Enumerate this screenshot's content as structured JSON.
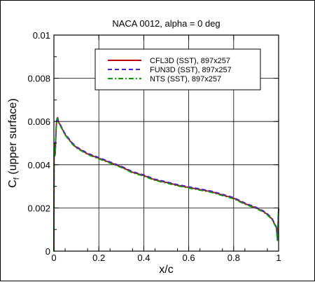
{
  "chart_data": {
    "type": "line",
    "title": "NACA 0012, alpha = 0 deg",
    "xlabel": "x/c",
    "ylabel_main": "C",
    "ylabel_sub": "f",
    "ylabel_rest": " (upper surface)",
    "xlim": [
      0,
      1
    ],
    "ylim": [
      0,
      0.01
    ],
    "xticks": [
      {
        "value": 0,
        "label": "0"
      },
      {
        "value": 0.2,
        "label": "0.2"
      },
      {
        "value": 0.4,
        "label": "0.4"
      },
      {
        "value": 0.6,
        "label": "0.6"
      },
      {
        "value": 0.8,
        "label": "0.8"
      },
      {
        "value": 1,
        "label": "1"
      }
    ],
    "yticks": [
      {
        "value": 0,
        "label": "0"
      },
      {
        "value": 0.002,
        "label": "0.002"
      },
      {
        "value": 0.004,
        "label": "0.004"
      },
      {
        "value": 0.006,
        "label": "0.006"
      },
      {
        "value": 0.008,
        "label": "0.008"
      },
      {
        "value": 0.01,
        "label": "0.01"
      }
    ],
    "grid": true,
    "legend_position": "top-right",
    "series": [
      {
        "name": "CFL3D (SST), 897x257",
        "color": "#c00000",
        "dash": "solid"
      },
      {
        "name": "FUN3D (SST), 897x257",
        "color": "#4b1fd6",
        "dash": "dashed"
      },
      {
        "name": "NTS (SST), 897x257",
        "color": "#00a000",
        "dash": "dashdot"
      }
    ],
    "x": [
      0,
      0.001,
      0.002,
      0.004,
      0.006,
      0.008,
      0.01,
      0.012,
      0.014,
      0.016,
      0.018,
      0.02,
      0.03,
      0.05,
      0.08,
      0.1,
      0.15,
      0.2,
      0.25,
      0.3,
      0.35,
      0.4,
      0.45,
      0.5,
      0.55,
      0.6,
      0.65,
      0.7,
      0.75,
      0.8,
      0.85,
      0.9,
      0.93,
      0.95,
      0.97,
      0.98,
      0.99,
      0.995,
      1.0
    ],
    "y": [
      0,
      0.0046,
      0.005,
      0.0044,
      0.0045,
      0.0051,
      0.0057,
      0.006,
      0.0061,
      0.0062,
      0.0061,
      0.006,
      0.0058,
      0.0054,
      0.005,
      0.0048,
      0.0045,
      0.0043,
      0.0041,
      0.0039,
      0.00365,
      0.0035,
      0.0033,
      0.00318,
      0.00305,
      0.00295,
      0.00285,
      0.00275,
      0.0026,
      0.00245,
      0.0022,
      0.002,
      0.00185,
      0.0017,
      0.0015,
      0.0013,
      0.0011,
      0.0005,
      0.002
    ]
  }
}
